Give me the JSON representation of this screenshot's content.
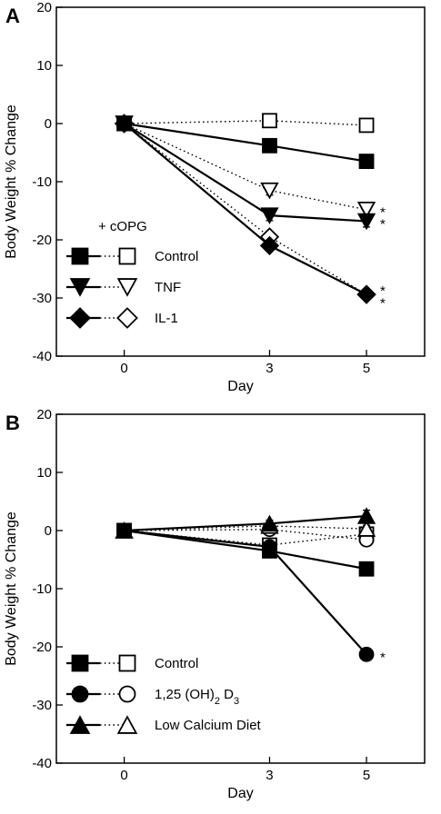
{
  "colors": {
    "ink": "#000000",
    "paper": "#ffffff"
  },
  "chart_data": [
    {
      "type": "line",
      "panel": "A",
      "xlabel": "Day",
      "ylabel": "Body Weight % Change",
      "x_ticks": [
        0,
        3,
        5
      ],
      "y_ticks": [
        20,
        10,
        0,
        -10,
        -20,
        -30,
        -40
      ],
      "xlim": [
        -1.4,
        6.2
      ],
      "ylim": [
        -40,
        20
      ],
      "grid": false,
      "legend_title": "+ cOPG",
      "legend_position": "bottom-left",
      "legend_rows": [
        {
          "label": "Control",
          "solid_marker": "square",
          "open_marker": "square"
        },
        {
          "label": "TNF",
          "solid_marker": "triangle-down",
          "open_marker": "triangle-down"
        },
        {
          "label": "IL-1",
          "solid_marker": "diamond",
          "open_marker": "diamond"
        }
      ],
      "x": [
        0,
        3,
        5
      ],
      "series": [
        {
          "name": "Control",
          "treatment": "",
          "marker": "square",
          "filled": true,
          "line": "solid",
          "values": [
            0,
            -3.8,
            -6.5
          ],
          "errors": [
            0,
            0.5,
            0.5
          ]
        },
        {
          "name": "Control",
          "treatment": "+ cOPG",
          "marker": "square",
          "filled": false,
          "line": "dotted",
          "values": [
            0,
            0.5,
            -0.3
          ],
          "errors": [
            0,
            0.6,
            0.4
          ]
        },
        {
          "name": "TNF",
          "treatment": "",
          "marker": "triangle-down",
          "filled": true,
          "line": "solid",
          "values": [
            0,
            -15.8,
            -16.8
          ],
          "errors": [
            0,
            0.9,
            1.0
          ]
        },
        {
          "name": "TNF",
          "treatment": "+ cOPG",
          "marker": "triangle-down",
          "filled": false,
          "line": "dotted",
          "values": [
            0,
            -11.5,
            -14.8
          ],
          "errors": [
            0,
            0.8,
            1.2
          ]
        },
        {
          "name": "IL-1",
          "treatment": "",
          "marker": "diamond",
          "filled": true,
          "line": "solid",
          "values": [
            0,
            -21,
            -29.4
          ],
          "errors": [
            0,
            0.6,
            0.6
          ]
        },
        {
          "name": "IL-1",
          "treatment": "+ cOPG",
          "marker": "diamond",
          "filled": false,
          "line": "dotted",
          "values": [
            0,
            -19.5,
            -29.4
          ],
          "errors": [
            0,
            0.6,
            0.6
          ]
        }
      ],
      "annotations": [
        {
          "text": "*",
          "x": 5,
          "y": -14.8
        },
        {
          "text": "*",
          "x": 5,
          "y": -16.8
        },
        {
          "text": "*",
          "x": 5,
          "y": -28.3
        },
        {
          "text": "*",
          "x": 5,
          "y": -30.4
        }
      ]
    },
    {
      "type": "line",
      "panel": "B",
      "xlabel": "Day",
      "ylabel": "Body Weight % Change",
      "x_ticks": [
        0,
        3,
        5
      ],
      "y_ticks": [
        20,
        10,
        0,
        -10,
        -20,
        -30,
        -40
      ],
      "xlim": [
        -1.4,
        6.2
      ],
      "ylim": [
        -40,
        20
      ],
      "grid": false,
      "legend_title": "",
      "legend_position": "bottom-left",
      "legend_rows": [
        {
          "label": "Control",
          "solid_marker": "square",
          "open_marker": "square"
        },
        {
          "label": "1,25 (OH)",
          "sub": "2",
          "label_suffix": " D",
          "sub2": "3",
          "solid_marker": "circle",
          "open_marker": "circle"
        },
        {
          "label": "Low Calcium Diet",
          "solid_marker": "triangle-up",
          "open_marker": "triangle-up"
        }
      ],
      "x": [
        0,
        3,
        5
      ],
      "series": [
        {
          "name": "Control",
          "marker": "square",
          "filled": true,
          "line": "solid",
          "values": [
            0,
            -3.5,
            -6.6
          ],
          "errors": [
            0,
            0.5,
            0.5
          ]
        },
        {
          "name": "Control",
          "marker": "square",
          "filled": false,
          "line": "dotted",
          "values": [
            0,
            -2.5,
            -0.6
          ],
          "errors": [
            0,
            0.5,
            0.5
          ]
        },
        {
          "name": "1,25 (OH)2 D3",
          "marker": "circle",
          "filled": true,
          "line": "solid",
          "values": [
            0,
            -2.8,
            -21.3
          ],
          "errors": [
            0,
            0.6,
            0.8
          ]
        },
        {
          "name": "1,25 (OH)2 D3",
          "marker": "circle",
          "filled": false,
          "line": "dotted",
          "values": [
            0,
            0.2,
            -1.6
          ],
          "errors": [
            0,
            0.6,
            0.8
          ]
        },
        {
          "name": "Low Calcium Diet",
          "marker": "triangle-up",
          "filled": true,
          "line": "solid",
          "values": [
            0,
            1.2,
            2.5
          ],
          "errors": [
            0,
            0.6,
            1.0
          ]
        },
        {
          "name": "Low Calcium Diet",
          "marker": "triangle-up",
          "filled": false,
          "line": "dotted",
          "values": [
            0,
            0.8,
            0.3
          ],
          "errors": [
            0,
            0.5,
            0.6
          ]
        }
      ],
      "annotations": [
        {
          "text": "*",
          "x": 5,
          "y": -21.3
        }
      ]
    }
  ]
}
